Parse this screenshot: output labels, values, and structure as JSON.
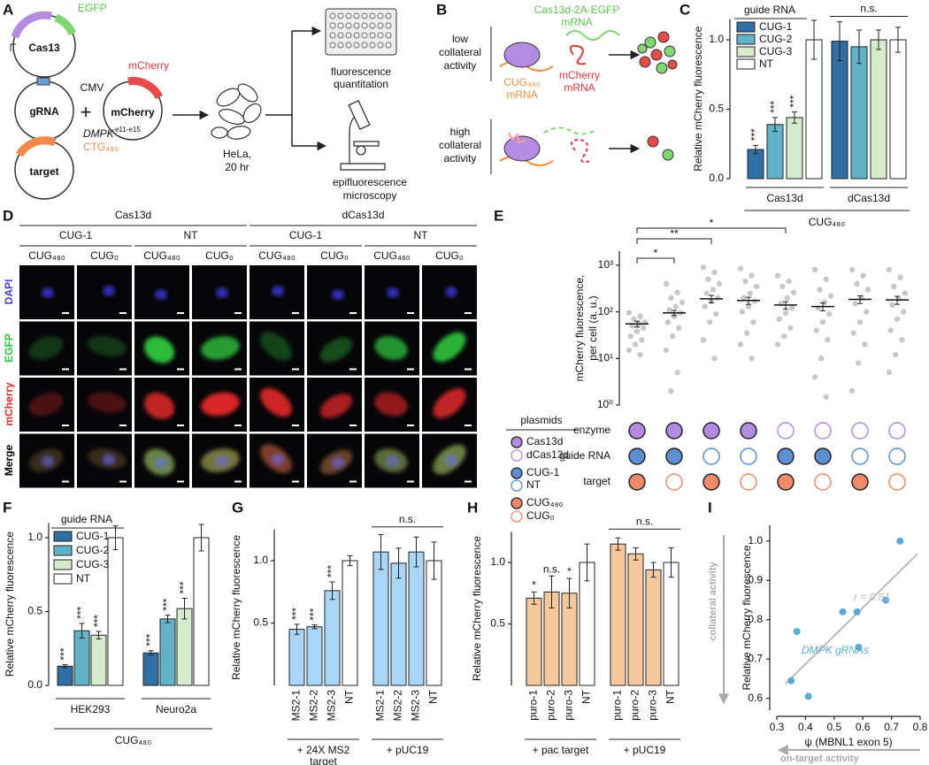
{
  "panel_labels": [
    "A",
    "B",
    "C",
    "D",
    "E",
    "F",
    "G",
    "H",
    "I"
  ],
  "panel_a": {
    "cas13": "Cas13",
    "egfp": "EGFP",
    "grna": "gRNA",
    "plus": "+",
    "cmv": "CMV",
    "mcherry_top": "mCherry",
    "mcherry": "mCherry",
    "dmpk": "DMPK",
    "dmpk_exons": "e11-e15",
    "ctg": "CTG₄₈₀",
    "target": "target",
    "hela": [
      "HeLa,",
      "20 hr"
    ],
    "plate": [
      "fluorescence",
      "quantitation"
    ],
    "scope": [
      "epifluorescence",
      "microscopy"
    ]
  },
  "panel_b": {
    "low": [
      "low",
      "collateral",
      "activity"
    ],
    "high": [
      "high",
      "collateral",
      "activity"
    ],
    "cas_mrna": [
      "Cas13d-2A-EGFP",
      "mRNA"
    ],
    "mcherry_mrna": [
      "mCherry",
      "mRNA"
    ],
    "cug_mrna": [
      "CUG₄₈₀",
      "mRNA"
    ]
  },
  "panel_d": {
    "enzymes": [
      "Cas13d",
      "dCas13d"
    ],
    "guides": [
      "CUG-1",
      "NT",
      "CUG-1",
      "NT"
    ],
    "targets": [
      "CUG₄₈₀",
      "CUG₀",
      "CUG₄₈₀",
      "CUG₀",
      "CUG₄₈₀",
      "CUG₀",
      "CUG₄₈₀",
      "CUG₀"
    ],
    "channels": [
      {
        "name": "DAPI",
        "color": "#4040e0"
      },
      {
        "name": "EGFP",
        "color": "#2ec83c"
      },
      {
        "name": "mCherry",
        "color": "#e82a2a"
      },
      {
        "name": "Merge",
        "color": "#000000"
      }
    ]
  },
  "plasmid_legend": {
    "title": "plasmids",
    "items": [
      {
        "name": "Cas13d",
        "color": "#b38be0",
        "filled": true
      },
      {
        "name": "dCas13d",
        "color": "#b38be0",
        "filled": false
      },
      {
        "name": "CUG-1",
        "color": "#5b8fcf",
        "filled": true
      },
      {
        "name": "NT",
        "color": "#5b8fcf",
        "filled": false
      },
      {
        "name": "CUG₄₈₀",
        "color": "#f08a6a",
        "filled": true
      },
      {
        "name": "CUG₀",
        "color": "#f08a6a",
        "filled": false
      }
    ]
  },
  "chart_data": [
    {
      "type": "bar",
      "y_label": "Relative mCherry fluorescence",
      "ylim": [
        0,
        1.15
      ],
      "yticks": [
        {
          "value": 0,
          "label": "0.0"
        },
        0.5,
        {
          "value": 1,
          "label": "1.0"
        }
      ],
      "legend": true,
      "legend_title": "guide RNA",
      "categories": [
        "Cas13d",
        "dCas13d"
      ],
      "group_title": "CUG₄₈₀",
      "group_signif": [
        null,
        "n.s."
      ],
      "series": [
        {
          "name": "CUG-1",
          "color": "#2f6fa3",
          "values": [
            0.21,
            0.99
          ],
          "errors": [
            0.03,
            0.14
          ],
          "signif": [
            "***",
            null
          ]
        },
        {
          "name": "CUG-2",
          "color": "#62b3c8",
          "values": [
            0.39,
            0.95
          ],
          "errors": [
            0.05,
            0.12
          ],
          "signif": [
            "***",
            null
          ]
        },
        {
          "name": "CUG-3",
          "color": "#d4ebcc",
          "values": [
            0.44,
            1.0
          ],
          "errors": [
            0.04,
            0.07
          ],
          "signif": [
            "***",
            null
          ]
        },
        {
          "name": "NT",
          "color": "#ffffff",
          "values": [
            1.0,
            1.0
          ],
          "errors": [
            0.14,
            0.09
          ],
          "signif": [
            null,
            null
          ]
        }
      ]
    },
    {
      "type": "dotplot",
      "y_label": [
        "mCherry fluorescence,",
        "per cell (a. u.)"
      ],
      "log": true,
      "ylim": [
        1,
        2000
      ],
      "yticks": [
        {
          "value": 1,
          "label": "10⁰"
        },
        {
          "value": 10,
          "label": "10¹"
        },
        {
          "value": 100,
          "label": "10²"
        },
        {
          "value": 1000,
          "label": "10³"
        }
      ],
      "point_color": "#c8c8c8",
      "points": [
        [
          95,
          80,
          70,
          60,
          55,
          50,
          45,
          38,
          30,
          25,
          20,
          15,
          12
        ],
        [
          400,
          260,
          200,
          160,
          130,
          110,
          95,
          80,
          60,
          45,
          30,
          15,
          5,
          2
        ],
        [
          900,
          700,
          500,
          400,
          300,
          250,
          200,
          170,
          130,
          90,
          60,
          25,
          10
        ],
        [
          850,
          600,
          450,
          350,
          250,
          200,
          170,
          130,
          100,
          60,
          35,
          20,
          10
        ],
        [
          600,
          450,
          350,
          260,
          200,
          150,
          120,
          95,
          70,
          45,
          30,
          20
        ],
        [
          800,
          500,
          300,
          220,
          160,
          120,
          90,
          60,
          40,
          25,
          10,
          4,
          1.5
        ],
        [
          800,
          600,
          400,
          300,
          200,
          150,
          100,
          60,
          35,
          20,
          8,
          2
        ],
        [
          800,
          550,
          350,
          250,
          190,
          140,
          100,
          70,
          40,
          25,
          12,
          5
        ]
      ],
      "means": [
        55,
        95,
        190,
        175,
        140,
        130,
        185,
        180
      ],
      "errors": [
        8,
        12,
        35,
        30,
        25,
        25,
        35,
        35
      ],
      "brackets": [
        "*",
        "**",
        "*"
      ],
      "rows": [
        {
          "name": "enzyme",
          "color": "#b38be0",
          "filled": [
            true,
            true,
            true,
            true,
            false,
            false,
            false,
            false
          ]
        },
        {
          "name": "guide RNA",
          "color": "#5b8fcf",
          "filled": [
            true,
            true,
            false,
            false,
            true,
            true,
            false,
            false
          ]
        },
        {
          "name": "target",
          "color": "#f08a6a",
          "filled": [
            true,
            false,
            true,
            false,
            true,
            false,
            true,
            false
          ]
        }
      ]
    },
    {
      "type": "bar",
      "y_label": "Relative mCherry fluorescence",
      "ylim": [
        0,
        1.1
      ],
      "yticks": [
        {
          "value": 0,
          "label": "0.0"
        },
        0.5,
        {
          "value": 1,
          "label": "1.0"
        }
      ],
      "legend": true,
      "legend_title": "guide RNA",
      "categories": [
        "HEK293",
        "Neuro2a"
      ],
      "group_title": "CUG₄₈₀",
      "series": [
        {
          "name": "CUG-1",
          "color": "#2f6fa3",
          "values": [
            0.13,
            0.22
          ],
          "errors": [
            0.01,
            0.015
          ],
          "signif": [
            "***",
            "***"
          ]
        },
        {
          "name": "CUG-2",
          "color": "#62b3c8",
          "values": [
            0.37,
            0.45
          ],
          "errors": [
            0.05,
            0.025
          ],
          "signif": [
            "***",
            "***"
          ]
        },
        {
          "name": "CUG-3",
          "color": "#d4ebcc",
          "values": [
            0.34,
            0.52
          ],
          "errors": [
            0.025,
            0.07
          ],
          "signif": [
            "***",
            "***"
          ]
        },
        {
          "name": "NT",
          "color": "#ffffff",
          "values": [
            1.0,
            1.0
          ],
          "errors": [
            0.08,
            0.09
          ],
          "signif": [
            null,
            null
          ]
        }
      ]
    },
    {
      "type": "bar",
      "y_label": "Relative mCherry fluorescence",
      "ylim": [
        0,
        1.25
      ],
      "yticks": [
        0.5,
        {
          "value": 1,
          "label": "1.0"
        }
      ],
      "bar_labels": true,
      "categories": [
        [
          "+ 24X MS2",
          "target"
        ],
        [
          "+ pUC19"
        ]
      ],
      "group_signif": [
        null,
        "n.s."
      ],
      "series": [
        {
          "name": "MS2-1",
          "color": "#a9d5f7",
          "values": [
            0.45,
            1.07
          ],
          "errors": [
            0.04,
            0.14
          ],
          "signif": [
            "***",
            null
          ]
        },
        {
          "name": "MS2-2",
          "color": "#a9d5f7",
          "values": [
            0.47,
            0.98
          ],
          "errors": [
            0.015,
            0.12
          ],
          "signif": [
            "***",
            null
          ]
        },
        {
          "name": "MS2-3",
          "color": "#a9d5f7",
          "values": [
            0.76,
            1.07
          ],
          "errors": [
            0.07,
            0.12
          ],
          "signif": [
            "***",
            null
          ]
        },
        {
          "name": "NT",
          "color": "#ffffff",
          "values": [
            1.0,
            1.0
          ],
          "errors": [
            0.04,
            0.15
          ],
          "signif": [
            null,
            null
          ]
        }
      ]
    },
    {
      "type": "bar",
      "y_label": "Relative mCherry fluorescence",
      "ylim": [
        0,
        1.25
      ],
      "yticks": [
        0.5,
        {
          "value": 1,
          "label": "1.0"
        }
      ],
      "bar_labels": true,
      "categories": [
        "+ pac target",
        "+ pUC19"
      ],
      "group_signif": [
        null,
        "n.s."
      ],
      "series": [
        {
          "name": "puro-1",
          "color": "#f5c99c",
          "values": [
            0.71,
            1.15
          ],
          "errors": [
            0.05,
            0.05
          ],
          "signif": [
            "*",
            null
          ]
        },
        {
          "name": "puro-2",
          "color": "#f5c99c",
          "values": [
            0.76,
            1.07
          ],
          "errors": [
            0.13,
            0.05
          ],
          "signif": [
            "n.s.",
            null
          ]
        },
        {
          "name": "puro-3",
          "color": "#f5c99c",
          "values": [
            0.75,
            0.94
          ],
          "errors": [
            0.12,
            0.06
          ],
          "signif": [
            "*",
            null
          ]
        },
        {
          "name": "NT",
          "color": "#ffffff",
          "values": [
            1.0,
            1.0
          ],
          "errors": [
            0.15,
            0.12
          ],
          "signif": [
            null,
            null
          ]
        }
      ]
    },
    {
      "type": "scatter",
      "y_label": "Relative mCherry fluorescence",
      "x_label": "ψ (MBNL1 exon 5)",
      "x": [
        0.35,
        0.37,
        0.41,
        0.53,
        0.58,
        0.585,
        0.68,
        0.73
      ],
      "values": [
        0.645,
        0.77,
        0.605,
        0.82,
        0.82,
        0.73,
        0.85,
        1.0
      ],
      "color": "#5aaad8",
      "xlim": [
        0.3,
        0.8
      ],
      "xticks": [
        0.3,
        0.4,
        0.5,
        0.6,
        0.7,
        0.8
      ],
      "ylim": [
        0.57,
        1.04
      ],
      "yticks": [
        0.6,
        0.7,
        0.8,
        0.9,
        {
          "value": 1,
          "label": "1.0"
        }
      ],
      "trendline": true,
      "trend_color": "#bbbbbb",
      "r_label": "r = 0.81",
      "point_label": "DMPK gRNAs",
      "y_arrow": "collateral activity",
      "x_arrow": "on-target activity"
    }
  ]
}
